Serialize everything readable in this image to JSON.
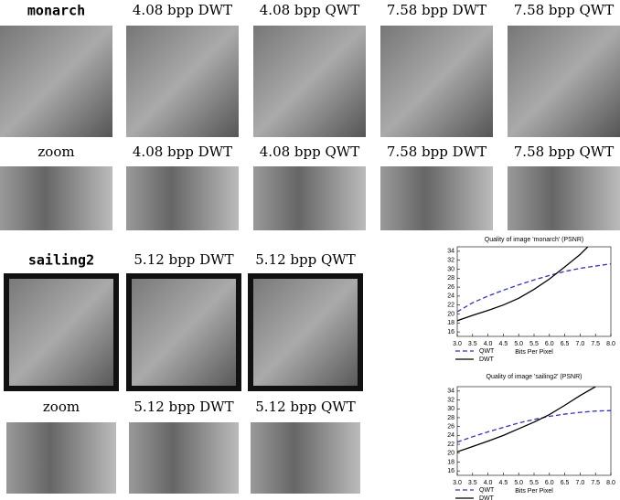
{
  "figure": {
    "rows": [
      {
        "labels": [
          "monarch",
          "4.08 bpp DWT",
          "4.08 bpp QWT",
          "7.58 bpp DWT",
          "7.58 bpp QWT"
        ]
      },
      {
        "labels": [
          "zoom",
          "4.08 bpp DWT",
          "4.08 bpp QWT",
          "7.58 bpp DWT",
          "7.58 bpp QWT"
        ]
      },
      {
        "labels": [
          "sailing2",
          "5.12 bpp DWT",
          "5.12 bpp QWT"
        ]
      },
      {
        "labels": [
          "zoom",
          "5.12 bpp DWT",
          "5.12 bpp QWT"
        ]
      }
    ]
  },
  "chart_data": [
    {
      "type": "line",
      "title": "Quality of image 'monarch' (PSNR)",
      "x_label": "Bits Per Pixel",
      "xlim": [
        3,
        8
      ],
      "ylim": [
        15,
        35
      ],
      "xticks": [
        {
          "value": 3,
          "label": "3.0"
        },
        3.5,
        {
          "value": 4,
          "label": "4.0"
        },
        4.5,
        {
          "value": 5,
          "label": "5.0"
        },
        5.5,
        {
          "value": 6,
          "label": "6.0"
        },
        6.5,
        {
          "value": 7,
          "label": "7.0"
        },
        7.5,
        {
          "value": 8,
          "label": "8.0"
        }
      ],
      "yticks": [
        16,
        18,
        20,
        22,
        24,
        26,
        28,
        30,
        32,
        34
      ],
      "series": [
        {
          "name": "QWT",
          "color": "#3333bb",
          "style": "dashed",
          "x": [
            3,
            3.5,
            4,
            4.5,
            5,
            5.5,
            6,
            6.5,
            7,
            7.5,
            8
          ],
          "values": [
            20.5,
            22.5,
            24.0,
            25.3,
            26.5,
            27.6,
            28.6,
            29.5,
            30.2,
            30.7,
            31.2
          ]
        },
        {
          "name": "DWT",
          "color": "#000000",
          "style": "solid",
          "x": [
            3,
            3.5,
            4,
            4.5,
            5,
            5.5,
            6,
            6.5,
            7,
            7.25
          ],
          "values": [
            18.5,
            19.7,
            20.8,
            22.0,
            23.5,
            25.5,
            27.8,
            30.5,
            33.3,
            35
          ]
        }
      ]
    },
    {
      "type": "line",
      "title": "Quality of image 'sailing2' (PSNR)",
      "x_label": "Bits Per Pixel",
      "xlim": [
        3,
        8
      ],
      "ylim": [
        15,
        35
      ],
      "xticks": [
        {
          "value": 3,
          "label": "3.0"
        },
        3.5,
        {
          "value": 4,
          "label": "4.0"
        },
        4.5,
        {
          "value": 5,
          "label": "5.0"
        },
        5.5,
        {
          "value": 6,
          "label": "6.0"
        },
        6.5,
        {
          "value": 7,
          "label": "7.0"
        },
        7.5,
        {
          "value": 8,
          "label": "8.0"
        }
      ],
      "yticks": [
        16,
        18,
        20,
        22,
        24,
        26,
        28,
        30,
        32,
        34
      ],
      "series": [
        {
          "name": "QWT",
          "color": "#3333bb",
          "style": "dashed",
          "x": [
            3,
            3.5,
            4,
            4.5,
            5,
            5.5,
            6,
            6.5,
            7,
            7.5,
            8
          ],
          "values": [
            22.5,
            23.7,
            24.8,
            25.8,
            26.8,
            27.6,
            28.3,
            28.8,
            29.2,
            29.5,
            29.6
          ]
        },
        {
          "name": "DWT",
          "color": "#000000",
          "style": "solid",
          "x": [
            3,
            3.5,
            4,
            4.5,
            5,
            5.5,
            6,
            6.5,
            7,
            7.5
          ],
          "values": [
            20.3,
            21.5,
            22.7,
            24.0,
            25.5,
            27.0,
            28.7,
            30.8,
            33.0,
            35
          ]
        }
      ]
    }
  ]
}
